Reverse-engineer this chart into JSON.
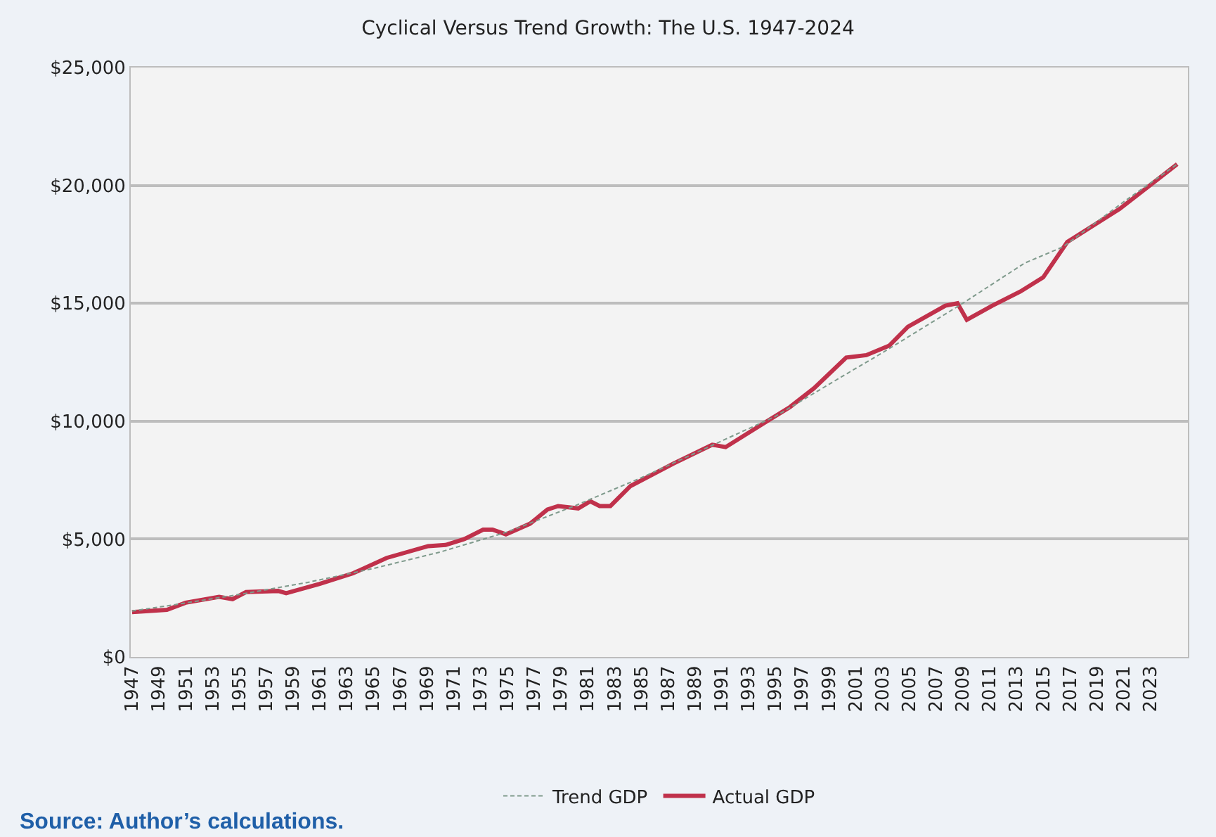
{
  "chart_data": {
    "type": "line",
    "title": "Cyclical Versus Trend Growth: The U.S. 1947-2024",
    "series": [
      {
        "name": "Trend GDP",
        "color": "#7f9a8c",
        "line_style": "dotted",
        "x": [
          1947,
          1950,
          1955,
          1960,
          1965,
          1970,
          1975,
          1980,
          1985,
          1990,
          1995,
          2000,
          2003,
          2005,
          2009,
          2013.6,
          2016.5,
          2021,
          2025
        ],
        "values": [
          1950,
          2200,
          2650,
          3150,
          3750,
          4450,
          5300,
          6400,
          7600,
          8900,
          10200,
          11900,
          12900,
          13600,
          15000,
          16700,
          17400,
          19300,
          20900
        ]
      },
      {
        "name": "Actual GDP",
        "color": "#c0314b",
        "line_style": "solid",
        "x": [
          1947,
          1949.6,
          1951,
          1953.5,
          1954.5,
          1955.5,
          1957.9,
          1958.5,
          1961,
          1963.5,
          1966,
          1969.1,
          1970.4,
          1971.8,
          1973.2,
          1973.9,
          1974.9,
          1976.7,
          1978,
          1978.8,
          1980.3,
          1981.2,
          1981.9,
          1982.7,
          1984.2,
          1987.4,
          1990.3,
          1991.3,
          1994.4,
          1996.1,
          1997.9,
          2000.3,
          2001.8,
          2003.5,
          2004.9,
          2007.7,
          2008.6,
          2009.3,
          2011.2,
          2013.3,
          2015,
          2016.8,
          2020.7,
          2025
        ],
        "values": [
          1900,
          2000,
          2300,
          2550,
          2450,
          2750,
          2800,
          2700,
          3100,
          3550,
          4200,
          4700,
          4750,
          5000,
          5400,
          5400,
          5200,
          5650,
          6250,
          6400,
          6300,
          6600,
          6400,
          6400,
          7250,
          8200,
          9000,
          8900,
          10000,
          10600,
          11400,
          12700,
          12800,
          13200,
          14000,
          14900,
          15000,
          14300,
          14900,
          15500,
          16100,
          17600,
          19000,
          20900
        ]
      }
    ],
    "xlim": [
      1946.9,
      2025.8
    ],
    "xticks": [
      1947,
      1949,
      1951,
      1953,
      1955,
      1957,
      1959,
      1961,
      1963,
      1965,
      1967,
      1969,
      1971,
      1973,
      1975,
      1977,
      1979,
      1981,
      1983,
      1985,
      1987,
      1989,
      1991,
      1993,
      1995,
      1997,
      1999,
      2001,
      2003,
      2005,
      2007,
      2009,
      2011,
      2013,
      2015,
      2017,
      2019,
      2021,
      2023
    ],
    "ylim": [
      0,
      25000
    ],
    "yticks": [
      {
        "value": 0,
        "label": "$0"
      },
      {
        "value": 5000,
        "label": "$5,000"
      },
      {
        "value": 10000,
        "label": "$10,000"
      },
      {
        "value": 15000,
        "label": "$15,000"
      },
      {
        "value": 20000,
        "label": "$20,000"
      },
      {
        "value": 25000,
        "label": "$25,000"
      }
    ],
    "grid": "y",
    "legend": "bottom",
    "marker": "none",
    "annotations": [
      "Source: Author’s calculations."
    ]
  }
}
